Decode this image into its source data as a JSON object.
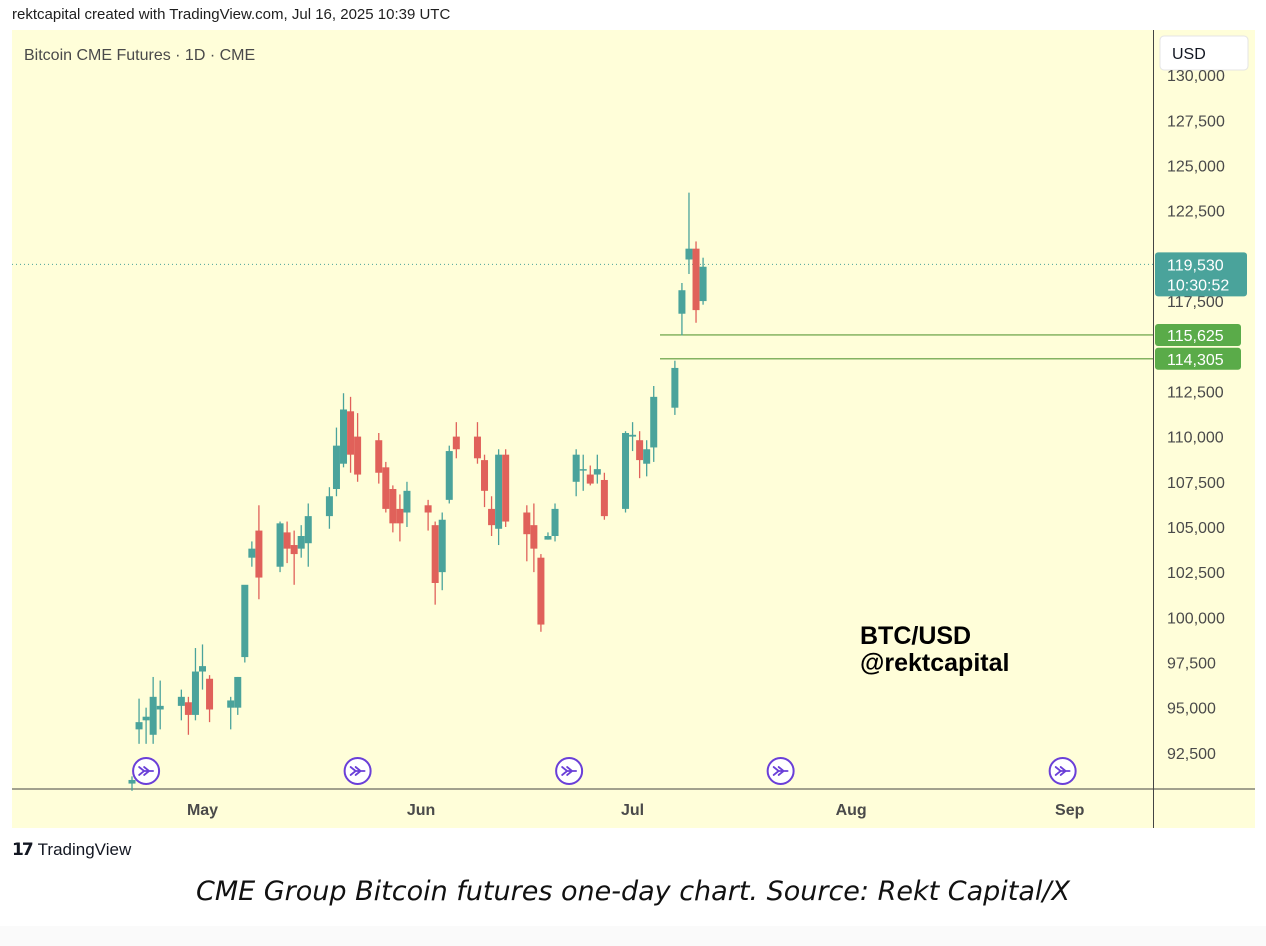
{
  "header": {
    "text": "rektcapital created with TradingView.com, Jul 16, 2025 10:39 UTC"
  },
  "footer": {
    "logo_mark": "17",
    "logo_text": "TradingView",
    "caption": "CME Group Bitcoin futures one-day chart. Source: Rekt Capital/X"
  },
  "chart_data": {
    "type": "candlestick",
    "title": "Bitcoin CME Futures · 1D · CME",
    "currency": "USD",
    "y_range": [
      90500,
      132500
    ],
    "y_ticks": [
      92500,
      95000,
      97500,
      100000,
      102500,
      105000,
      107500,
      110000,
      112500,
      117500,
      122500,
      125000,
      127500,
      130000
    ],
    "x_range": [
      "2025-04-21",
      "2025-09-07"
    ],
    "x_labels": [
      {
        "date": "2025-05-01",
        "label": "May"
      },
      {
        "date": "2025-06-01",
        "label": "Jun"
      },
      {
        "date": "2025-07-01",
        "label": "Jul"
      },
      {
        "date": "2025-08-01",
        "label": "Aug"
      },
      {
        "date": "2025-09-01",
        "label": "Sep"
      }
    ],
    "candles": [
      {
        "d": "2025-04-21",
        "o": 90800,
        "h": 91200,
        "l": 90400,
        "c": 91000
      },
      {
        "d": "2025-04-22",
        "o": 93800,
        "h": 95500,
        "l": 93000,
        "c": 94200
      },
      {
        "d": "2025-04-23",
        "o": 94300,
        "h": 95000,
        "l": 93000,
        "c": 94500
      },
      {
        "d": "2025-04-24",
        "o": 93500,
        "h": 96700,
        "l": 93000,
        "c": 95600
      },
      {
        "d": "2025-04-25",
        "o": 94900,
        "h": 96500,
        "l": 93800,
        "c": 95100
      },
      {
        "d": "2025-04-28",
        "o": 95100,
        "h": 96000,
        "l": 94300,
        "c": 95600
      },
      {
        "d": "2025-04-29",
        "o": 95300,
        "h": 95600,
        "l": 93500,
        "c": 94600
      },
      {
        "d": "2025-04-30",
        "o": 94600,
        "h": 98300,
        "l": 94300,
        "c": 97000
      },
      {
        "d": "2025-05-01",
        "o": 97000,
        "h": 98500,
        "l": 96000,
        "c": 97300
      },
      {
        "d": "2025-05-02",
        "o": 96600,
        "h": 96800,
        "l": 94200,
        "c": 94900
      },
      {
        "d": "2025-05-05",
        "o": 95000,
        "h": 95600,
        "l": 93800,
        "c": 95400
      },
      {
        "d": "2025-05-06",
        "o": 95000,
        "h": 96700,
        "l": 94600,
        "c": 96700
      },
      {
        "d": "2025-05-07",
        "o": 97800,
        "h": 101600,
        "l": 97500,
        "c": 101800
      },
      {
        "d": "2025-05-08",
        "o": 103300,
        "h": 104200,
        "l": 102800,
        "c": 103800
      },
      {
        "d": "2025-05-09",
        "o": 104800,
        "h": 106200,
        "l": 101000,
        "c": 102200
      },
      {
        "d": "2025-05-12",
        "o": 102800,
        "h": 105300,
        "l": 102500,
        "c": 105200
      },
      {
        "d": "2025-05-13",
        "o": 104700,
        "h": 105300,
        "l": 103000,
        "c": 103800
      },
      {
        "d": "2025-05-14",
        "o": 104000,
        "h": 104800,
        "l": 101800,
        "c": 103500
      },
      {
        "d": "2025-05-15",
        "o": 103800,
        "h": 105100,
        "l": 103300,
        "c": 104500
      },
      {
        "d": "2025-05-16",
        "o": 104100,
        "h": 106300,
        "l": 102800,
        "c": 105600
      },
      {
        "d": "2025-05-19",
        "o": 105600,
        "h": 107200,
        "l": 104900,
        "c": 106700
      },
      {
        "d": "2025-05-20",
        "o": 107100,
        "h": 110500,
        "l": 106700,
        "c": 109500
      },
      {
        "d": "2025-05-21",
        "o": 108500,
        "h": 112400,
        "l": 108300,
        "c": 111500
      },
      {
        "d": "2025-05-22",
        "o": 111400,
        "h": 112200,
        "l": 108000,
        "c": 109000
      },
      {
        "d": "2025-05-23",
        "o": 110000,
        "h": 111300,
        "l": 107500,
        "c": 107900
      },
      {
        "d": "2025-05-26",
        "o": 109800,
        "h": 110200,
        "l": 107400,
        "c": 108000
      },
      {
        "d": "2025-05-27",
        "o": 108300,
        "h": 108600,
        "l": 105800,
        "c": 106000
      },
      {
        "d": "2025-05-28",
        "o": 107100,
        "h": 107300,
        "l": 104700,
        "c": 105200
      },
      {
        "d": "2025-05-29",
        "o": 106000,
        "h": 106800,
        "l": 104200,
        "c": 105200
      },
      {
        "d": "2025-05-30",
        "o": 105800,
        "h": 107500,
        "l": 105000,
        "c": 107000
      },
      {
        "d": "2025-06-02",
        "o": 106200,
        "h": 106500,
        "l": 104800,
        "c": 105800
      },
      {
        "d": "2025-06-03",
        "o": 105100,
        "h": 105300,
        "l": 100700,
        "c": 101900
      },
      {
        "d": "2025-06-04",
        "o": 102500,
        "h": 105800,
        "l": 101500,
        "c": 105400
      },
      {
        "d": "2025-06-05",
        "o": 106500,
        "h": 109500,
        "l": 106300,
        "c": 109200
      },
      {
        "d": "2025-06-06",
        "o": 110000,
        "h": 110800,
        "l": 108800,
        "c": 109300
      },
      {
        "d": "2025-06-09",
        "o": 110000,
        "h": 110800,
        "l": 108500,
        "c": 108800
      },
      {
        "d": "2025-06-10",
        "o": 108700,
        "h": 109000,
        "l": 106100,
        "c": 107000
      },
      {
        "d": "2025-06-11",
        "o": 106000,
        "h": 106700,
        "l": 104500,
        "c": 105100
      },
      {
        "d": "2025-06-12",
        "o": 104900,
        "h": 109300,
        "l": 104000,
        "c": 109000
      },
      {
        "d": "2025-06-13",
        "o": 109000,
        "h": 109300,
        "l": 105000,
        "c": 105300
      },
      {
        "d": "2025-06-16",
        "o": 105800,
        "h": 106200,
        "l": 103100,
        "c": 104600
      },
      {
        "d": "2025-06-17",
        "o": 105100,
        "h": 106300,
        "l": 102500,
        "c": 103800
      },
      {
        "d": "2025-06-18",
        "o": 103300,
        "h": 103500,
        "l": 99200,
        "c": 99600
      },
      {
        "d": "2025-06-19",
        "o": 104300,
        "h": 104700,
        "l": 104300,
        "c": 104500
      },
      {
        "d": "2025-06-20",
        "o": 104500,
        "h": 106300,
        "l": 104200,
        "c": 106000
      },
      {
        "d": "2025-06-23",
        "o": 107500,
        "h": 109300,
        "l": 106700,
        "c": 109000
      },
      {
        "d": "2025-06-24",
        "o": 108200,
        "h": 109000,
        "l": 107000,
        "c": 108200
      },
      {
        "d": "2025-06-25",
        "o": 107900,
        "h": 108400,
        "l": 107300,
        "c": 107400
      },
      {
        "d": "2025-06-26",
        "o": 107900,
        "h": 109000,
        "l": 107400,
        "c": 108200
      },
      {
        "d": "2025-06-27",
        "o": 107600,
        "h": 108000,
        "l": 105400,
        "c": 105600
      },
      {
        "d": "2025-06-30",
        "o": 106000,
        "h": 110300,
        "l": 105800,
        "c": 110200
      },
      {
        "d": "2025-07-01",
        "o": 110000,
        "h": 110800,
        "l": 109200,
        "c": 110100
      },
      {
        "d": "2025-07-02",
        "o": 109800,
        "h": 110300,
        "l": 107700,
        "c": 108700
      },
      {
        "d": "2025-07-03",
        "o": 108500,
        "h": 109800,
        "l": 107800,
        "c": 109300
      },
      {
        "d": "2025-07-04",
        "o": 109400,
        "h": 112800,
        "l": 108600,
        "c": 112200
      },
      {
        "d": "2025-07-07",
        "o": 111600,
        "h": 114200,
        "l": 111200,
        "c": 113800
      },
      {
        "d": "2025-07-08",
        "o": 116800,
        "h": 118500,
        "l": 115600,
        "c": 118100
      },
      {
        "d": "2025-07-09",
        "o": 119800,
        "h": 123500,
        "l": 119000,
        "c": 120400
      },
      {
        "d": "2025-07-10",
        "o": 120400,
        "h": 120800,
        "l": 116300,
        "c": 117000
      },
      {
        "d": "2025-07-11",
        "o": 117500,
        "h": 119900,
        "l": 117300,
        "c": 119400
      }
    ],
    "last_price": {
      "label": "119,530",
      "value": 119530,
      "countdown": "10:30:52"
    },
    "levels": [
      {
        "label": "115,625",
        "value": 115625
      },
      {
        "label": "114,305",
        "value": 114305
      }
    ],
    "event_markers": [
      "2025-04-23",
      "2025-05-23",
      "2025-06-22",
      "2025-07-22",
      "2025-08-31"
    ],
    "annotation": [
      "BTC/USD",
      "@rektcapital"
    ],
    "colors": {
      "up": "#4aa39b",
      "down": "#e0615a",
      "background": "#fffed9",
      "level": "#5c9a3a",
      "level_label": "#5aab49",
      "last_price_label": "#4aa39b",
      "marker": "#6a3fd8"
    }
  }
}
